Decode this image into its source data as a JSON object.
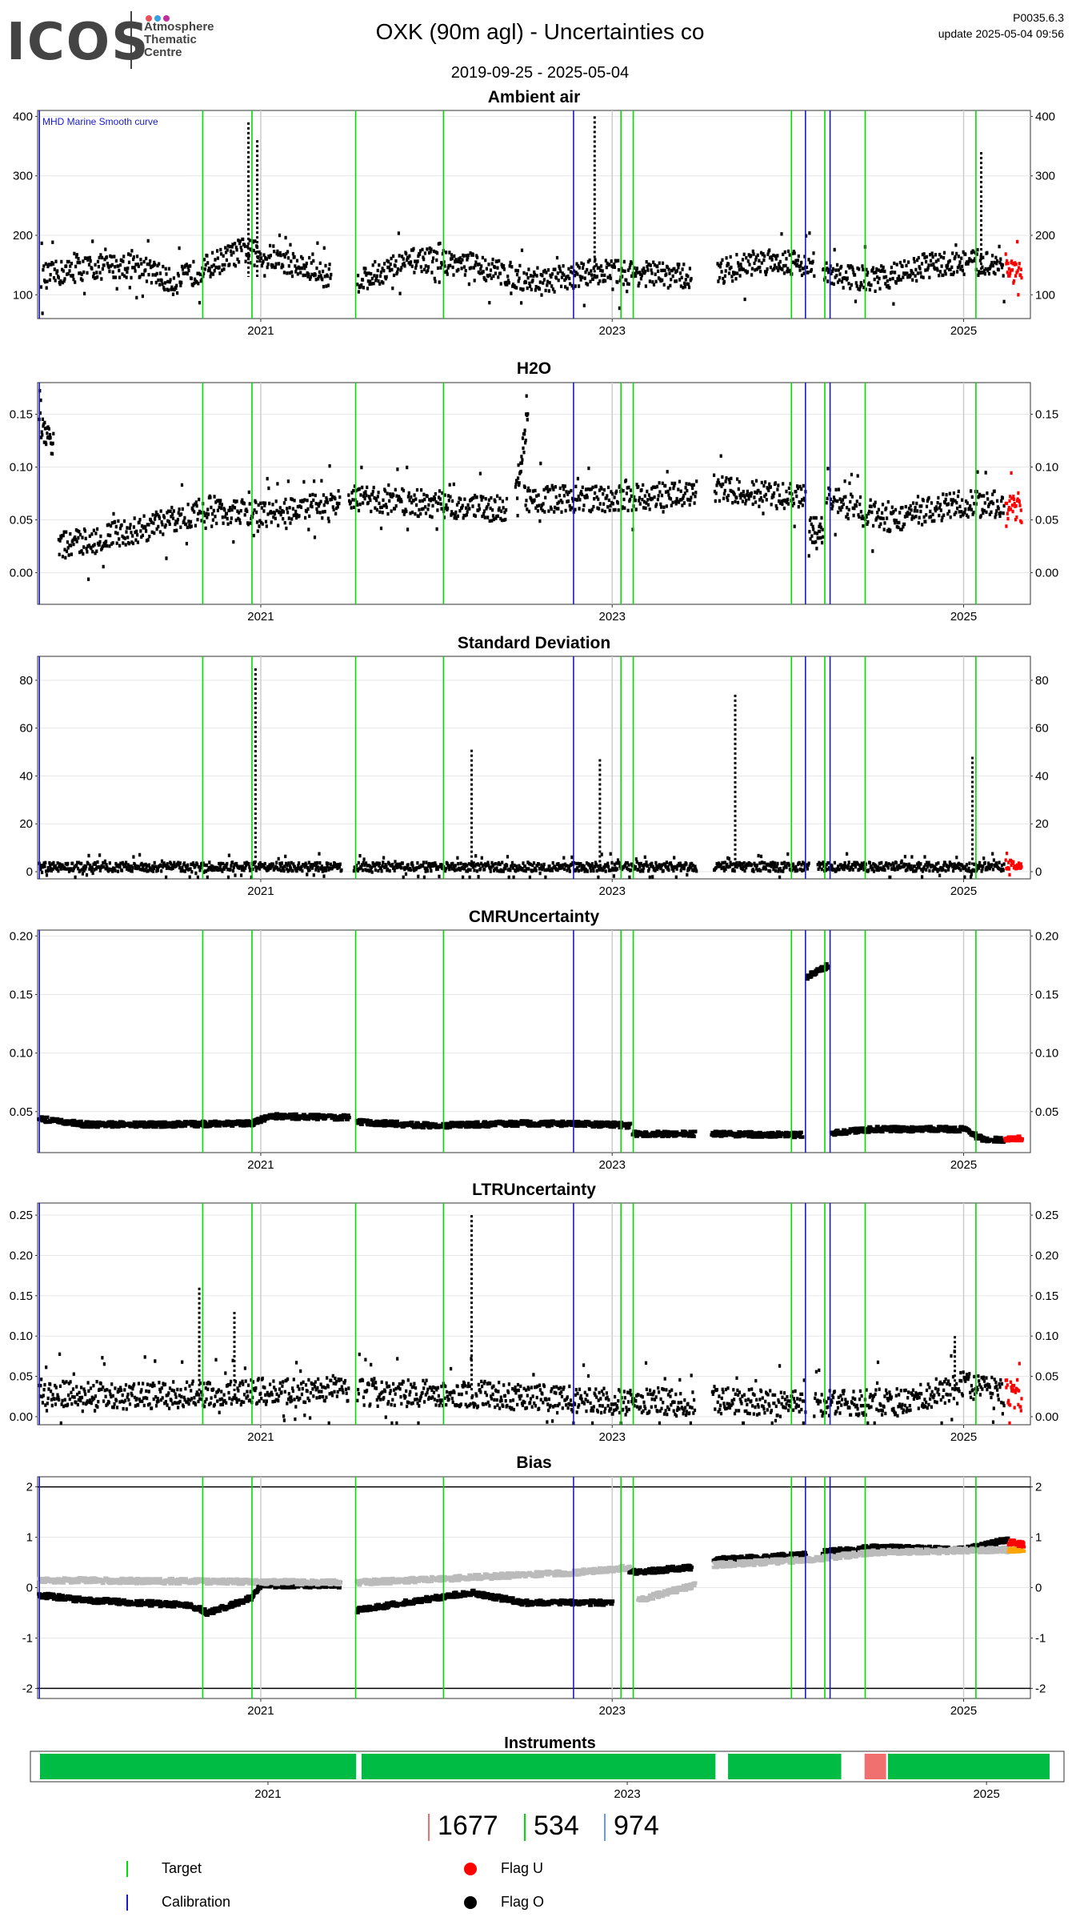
{
  "header": {
    "logo_text": "ICOS",
    "logo_sub": [
      "Atmosphere",
      "Thematic",
      "Centre"
    ],
    "logo_dot_colors": [
      "#e8505b",
      "#3aa0e0",
      "#c0309a"
    ],
    "title": "OXK  (90m agl) - Uncertainties co",
    "date_range": "2019-09-25 - 2025-05-04",
    "version": "P0035.6.3",
    "update": "update  2025-05-04 09:56"
  },
  "colors": {
    "target": "#00dd00",
    "calibration": "#1a1acc",
    "flag_u": "#ff0000",
    "flag_o": "#000000",
    "mhd_curve": "#bbbbbb",
    "instrument_ok": "#00bb44",
    "instrument_alt": "#f07070",
    "bias_orange": "#ffa500"
  },
  "x_axis": {
    "ticks": [
      2021,
      2023,
      2025
    ],
    "xlim": [
      2019.73,
      2025.38
    ]
  },
  "events": {
    "target_lines": [
      2020.67,
      2020.95,
      2021.54,
      2022.04,
      2023.05,
      2023.12,
      2024.02,
      2024.21,
      2024.44,
      2025.07
    ],
    "calibration_lines": [
      2019.74,
      2022.78,
      2024.1,
      2024.24
    ],
    "gray_lines": [
      2021.0,
      2023.0,
      2025.0
    ]
  },
  "chart_data": [
    {
      "id": "ambient",
      "type": "scatter",
      "title": "Ambient air",
      "annotation": "MHD Marine Smooth curve",
      "ylim": [
        60,
        410
      ],
      "yticks": [
        100,
        200,
        300,
        400
      ],
      "gaps": [
        [
          2021.47,
          2021.53
        ],
        [
          2023.48,
          2023.58
        ],
        [
          2024.15,
          2024.18
        ]
      ],
      "series": [
        {
          "color": "#000000",
          "segments": [
            {
              "x": [
                2019.75,
                2020.0,
                2020.3,
                2020.5,
                2020.9,
                2021.1,
                2021.4
              ],
              "y": [
                130,
                145,
                150,
                120,
                175,
                160,
                130
              ]
            },
            {
              "x": [
                2021.55,
                2021.9,
                2022.2,
                2022.6,
                2022.9,
                2023.2,
                2023.45
              ],
              "y": [
                125,
                160,
                150,
                120,
                140,
                135,
                130
              ]
            },
            {
              "x": [
                2023.6,
                2023.9,
                2024.15
              ],
              "y": [
                140,
                160,
                150
              ]
            },
            {
              "x": [
                2024.2,
                2024.5,
                2024.8,
                2025.1,
                2025.23
              ],
              "y": [
                135,
                125,
                150,
                155,
                150
              ]
            }
          ]
        },
        {
          "color": "#ff0000",
          "segments": [
            {
              "x": [
                2025.24,
                2025.33
              ],
              "y": [
                145,
                130
              ]
            }
          ]
        }
      ],
      "spikes": {
        "x": [
          2020.93,
          2020.98,
          2022.9,
          2025.1
        ],
        "y": [
          390,
          360,
          400,
          340
        ]
      }
    },
    {
      "id": "h2o",
      "type": "scatter",
      "title": "H2O",
      "ylim": [
        -0.03,
        0.18
      ],
      "yticks": [
        0.0,
        0.05,
        0.1,
        0.15
      ],
      "ytick_labels": [
        "0.00",
        "0.05",
        "0.10",
        "0.15"
      ],
      "gaps": [
        [
          2023.48,
          2023.58
        ],
        [
          2024.12,
          2024.18
        ]
      ],
      "series": [
        {
          "color": "#000000",
          "segments": [
            {
              "x": [
                2019.74,
                2019.82
              ],
              "y": [
                0.14,
                0.12
              ]
            },
            {
              "x": [
                2019.85,
                2020.3,
                2020.7,
                2021.0,
                2021.45
              ],
              "y": [
                0.025,
                0.04,
                0.06,
                0.055,
                0.065
              ]
            },
            {
              "x": [
                2021.5,
                2022.0,
                2022.4
              ],
              "y": [
                0.07,
                0.065,
                0.06
              ]
            },
            {
              "x": [
                2022.45,
                2022.52
              ],
              "y": [
                0.07,
                0.15
              ]
            },
            {
              "x": [
                2022.5,
                2023.0,
                2023.48
              ],
              "y": [
                0.07,
                0.07,
                0.075
              ]
            },
            {
              "x": [
                2023.58,
                2024.1
              ],
              "y": [
                0.08,
                0.07
              ]
            },
            {
              "x": [
                2024.12,
                2024.2
              ],
              "y": [
                0.04,
                0.04
              ]
            },
            {
              "x": [
                2024.22,
                2024.6,
                2024.95,
                2025.23
              ],
              "y": [
                0.07,
                0.05,
                0.065,
                0.065
              ]
            }
          ]
        },
        {
          "color": "#ff0000",
          "segments": [
            {
              "x": [
                2025.24,
                2025.33
              ],
              "y": [
                0.065,
                0.055
              ]
            }
          ]
        }
      ]
    },
    {
      "id": "stddev",
      "type": "scatter",
      "title": "Standard Deviation",
      "ylim": [
        -3,
        90
      ],
      "yticks": [
        0,
        20,
        40,
        60,
        80
      ],
      "gaps": [
        [
          2021.46,
          2021.53
        ],
        [
          2023.48,
          2023.58
        ],
        [
          2024.12,
          2024.17
        ]
      ],
      "series": [
        {
          "color": "#000000",
          "segments": [
            {
              "x": [
                2019.74,
                2021.46
              ],
              "y": [
                2,
                2
              ]
            },
            {
              "x": [
                2021.53,
                2023.48
              ],
              "y": [
                2,
                2
              ]
            },
            {
              "x": [
                2023.58,
                2024.12
              ],
              "y": [
                2,
                2
              ]
            },
            {
              "x": [
                2024.17,
                2025.23
              ],
              "y": [
                2,
                2
              ]
            }
          ]
        },
        {
          "color": "#ff0000",
          "segments": [
            {
              "x": [
                2025.24,
                2025.33
              ],
              "y": [
                3,
                3
              ]
            }
          ]
        }
      ],
      "spikes": {
        "x": [
          2020.97,
          2022.2,
          2022.93,
          2023.7,
          2025.05
        ],
        "y": [
          85,
          51,
          47,
          74,
          48
        ]
      }
    },
    {
      "id": "cmr",
      "type": "line",
      "title": "CMRUncertainty",
      "ylim": [
        0.015,
        0.205
      ],
      "yticks": [
        0.05,
        0.1,
        0.15,
        0.2
      ],
      "ytick_labels": [
        "0.05",
        "0.10",
        "0.15",
        "0.20"
      ],
      "series": [
        {
          "color": "#000000",
          "segments": [
            {
              "x": [
                2019.74,
                2020.0,
                2020.5,
                2020.95,
                2021.05,
                2021.5
              ],
              "y": [
                0.044,
                0.039,
                0.039,
                0.04,
                0.046,
                0.045
              ]
            },
            {
              "x": [
                2021.55,
                2022.0,
                2022.5,
                2023.0,
                2023.1
              ],
              "y": [
                0.041,
                0.038,
                0.04,
                0.039,
                0.038
              ]
            },
            {
              "x": [
                2023.12,
                2023.47
              ],
              "y": [
                0.031,
                0.031
              ]
            },
            {
              "x": [
                2023.57,
                2024.08
              ],
              "y": [
                0.031,
                0.03
              ]
            },
            {
              "x": [
                2024.11,
                2024.23
              ],
              "y": [
                0.165,
                0.175
              ]
            },
            {
              "x": [
                2024.25,
                2024.5,
                2025.0,
                2025.1
              ],
              "y": [
                0.032,
                0.035,
                0.035,
                0.027
              ]
            },
            {
              "x": [
                2025.1,
                2025.23
              ],
              "y": [
                0.026,
                0.026
              ]
            }
          ]
        },
        {
          "color": "#ff0000",
          "segments": [
            {
              "x": [
                2025.24,
                2025.33
              ],
              "y": [
                0.027,
                0.027
              ]
            }
          ]
        }
      ]
    },
    {
      "id": "ltr",
      "type": "scatter",
      "title": "LTRUncertainty",
      "ylim": [
        -0.01,
        0.265
      ],
      "yticks": [
        0.0,
        0.05,
        0.1,
        0.15,
        0.2,
        0.25
      ],
      "ytick_labels": [
        "0.00",
        "0.05",
        "0.10",
        "0.15",
        "0.20",
        "0.25"
      ],
      "series": [
        {
          "color": "#000000",
          "segments": [
            {
              "x": [
                2019.74,
                2020.3,
                2020.9,
                2021.5
              ],
              "y": [
                0.03,
                0.025,
                0.03,
                0.035
              ]
            },
            {
              "x": [
                2021.55,
                2022.2,
                2022.9,
                2023.47
              ],
              "y": [
                0.03,
                0.028,
                0.02,
                0.018
              ]
            },
            {
              "x": [
                2023.57,
                2024.1
              ],
              "y": [
                0.02,
                0.015
              ]
            },
            {
              "x": [
                2024.15,
                2024.7,
                2025.0,
                2025.23
              ],
              "y": [
                0.015,
                0.02,
                0.04,
                0.03
              ]
            }
          ]
        },
        {
          "color": "#ff0000",
          "segments": [
            {
              "x": [
                2025.24,
                2025.33
              ],
              "y": [
                0.03,
                0.02
              ]
            }
          ]
        }
      ],
      "spikes": {
        "x": [
          2020.65,
          2020.85,
          2022.2,
          2024.95
        ],
        "y": [
          0.16,
          0.13,
          0.25,
          0.1
        ]
      }
    },
    {
      "id": "bias",
      "type": "line",
      "title": "Bias",
      "ylim": [
        -2.2,
        2.2
      ],
      "yticks": [
        -2,
        -1,
        0,
        1,
        2
      ],
      "hlines": [
        -2,
        2
      ],
      "series": [
        {
          "name": "",
          "color": "#000000",
          "segments": [
            {
              "x": [
                2019.74,
                2020.0,
                2020.6,
                2020.7,
                2020.95,
                2021.0,
                2021.45
              ],
              "y": [
                -0.15,
                -0.25,
                -0.35,
                -0.5,
                -0.2,
                0.05,
                0.05
              ]
            },
            {
              "x": [
                2021.55,
                2022.0,
                2022.2,
                2022.5,
                2023.0
              ],
              "y": [
                -0.45,
                -0.2,
                -0.1,
                -0.3,
                -0.3
              ]
            },
            {
              "x": [
                2023.1,
                2023.45
              ],
              "y": [
                0.3,
                0.4
              ]
            },
            {
              "x": [
                2023.58,
                2024.1
              ],
              "y": [
                0.55,
                0.65
              ]
            },
            {
              "x": [
                2024.2,
                2024.5,
                2025.0,
                2025.25
              ],
              "y": [
                0.7,
                0.8,
                0.75,
                0.95
              ]
            }
          ]
        },
        {
          "color": "#bbbbbb",
          "segments": [
            {
              "x": [
                2019.74,
                2021.45
              ],
              "y": [
                0.15,
                0.1
              ]
            },
            {
              "x": [
                2021.55,
                2022.8,
                2023.1
              ],
              "y": [
                0.1,
                0.3,
                0.4
              ]
            },
            {
              "x": [
                2023.15,
                2023.47
              ],
              "y": [
                -0.25,
                0.05
              ]
            },
            {
              "x": [
                2023.58,
                2024.1,
                2024.5,
                2025.25
              ],
              "y": [
                0.45,
                0.55,
                0.7,
                0.75
              ]
            }
          ]
        },
        {
          "color": "#ffa500",
          "segments": [
            {
              "x": [
                2025.26,
                2025.34
              ],
              "y": [
                0.75,
                0.75
              ]
            }
          ]
        },
        {
          "color": "#ff0000",
          "segments": [
            {
              "x": [
                2025.26,
                2025.34
              ],
              "y": [
                0.9,
                0.85
              ]
            }
          ]
        }
      ]
    }
  ],
  "instruments": {
    "title": "Instruments",
    "blocks": [
      {
        "x": [
          2019.74,
          2021.5
        ],
        "color": "#00bb44"
      },
      {
        "x": [
          2021.53,
          2023.5
        ],
        "color": "#00bb44"
      },
      {
        "x": [
          2023.57,
          2024.2
        ],
        "color": "#00bb44"
      },
      {
        "x": [
          2024.33,
          2024.45
        ],
        "color": "#f07070"
      },
      {
        "x": [
          2024.46,
          2025.36
        ],
        "color": "#00bb44"
      }
    ]
  },
  "legend": {
    "counts": [
      "1677",
      "534",
      "974"
    ],
    "count_colors": [
      "#f07070",
      "#00dd00",
      "#6699ff"
    ],
    "items": [
      {
        "label": "Target",
        "kind": "vline",
        "color": "#00dd00"
      },
      {
        "label": "Calibration",
        "kind": "vline",
        "color": "#1a1acc"
      },
      {
        "label": "Flag U",
        "kind": "dot",
        "color": "#ff0000"
      },
      {
        "label": "Flag O",
        "kind": "dot",
        "color": "#000000"
      }
    ]
  }
}
